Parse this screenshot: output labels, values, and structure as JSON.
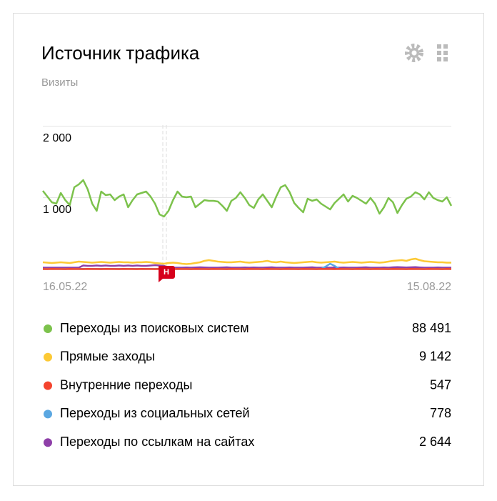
{
  "chart_data": {
    "type": "line",
    "title": "Источник трафика",
    "subtitle": "Визиты",
    "annotation": "Н",
    "categories": [
      "16.05.22",
      null,
      null,
      null,
      null,
      null,
      null,
      null,
      null,
      null,
      null,
      null,
      null,
      null,
      null,
      null,
      null,
      null,
      null,
      null,
      null,
      null,
      null,
      null,
      null,
      null,
      null,
      null,
      null,
      null,
      null,
      null,
      null,
      null,
      null,
      null,
      null,
      null,
      null,
      null,
      null,
      null,
      null,
      null,
      null,
      null,
      null,
      null,
      null,
      null,
      null,
      null,
      null,
      null,
      null,
      null,
      null,
      null,
      null,
      null,
      null,
      null,
      null,
      null,
      null,
      null,
      null,
      null,
      null,
      null,
      null,
      null,
      null,
      null,
      null,
      null,
      null,
      null,
      null,
      null,
      null,
      null,
      null,
      null,
      null,
      null,
      null,
      null,
      null,
      null,
      null,
      "15.08.22"
    ],
    "ylim": [
      0,
      2000
    ],
    "yticks": [
      {
        "value": 1000,
        "label": "1 000"
      },
      {
        "value": 2000,
        "label": "2 000"
      }
    ],
    "grid": true,
    "series": [
      {
        "name": "Переходы из поисковых систем",
        "color": "#7cc24c",
        "total": 88491,
        "total_label": "88 491",
        "values": [
          1100,
          1020,
          940,
          920,
          1070,
          970,
          900,
          1150,
          1190,
          1250,
          1120,
          920,
          820,
          1090,
          1040,
          1050,
          970,
          1020,
          1050,
          870,
          970,
          1050,
          1070,
          1090,
          1020,
          920,
          770,
          740,
          820,
          970,
          1090,
          1020,
          1010,
          1020,
          870,
          920,
          970,
          960,
          960,
          950,
          890,
          820,
          960,
          1000,
          1080,
          1000,
          900,
          860,
          980,
          1050,
          960,
          870,
          1020,
          1150,
          1180,
          1080,
          930,
          860,
          800,
          990,
          960,
          980,
          920,
          880,
          840,
          930,
          990,
          1050,
          950,
          1030,
          1000,
          960,
          920,
          1000,
          920,
          780,
          870,
          1000,
          940,
          790,
          900,
          990,
          1020,
          1080,
          1050,
          980,
          1080,
          1000,
          970,
          950,
          1010,
          890
        ]
      },
      {
        "name": "Прямые заходы",
        "color": "#fcc935",
        "total": 9142,
        "total_label": "9 142",
        "values": [
          100,
          95,
          90,
          95,
          100,
          95,
          90,
          100,
          110,
          105,
          100,
          95,
          100,
          105,
          100,
          95,
          100,
          105,
          100,
          100,
          95,
          100,
          100,
          105,
          100,
          90,
          85,
          80,
          90,
          95,
          90,
          80,
          75,
          80,
          90,
          100,
          120,
          130,
          120,
          110,
          105,
          100,
          100,
          105,
          110,
          100,
          95,
          100,
          105,
          110,
          120,
          105,
          100,
          110,
          100,
          95,
          90,
          95,
          100,
          105,
          110,
          100,
          95,
          100,
          105,
          110,
          100,
          95,
          100,
          105,
          100,
          95,
          100,
          105,
          100,
          95,
          100,
          110,
          120,
          125,
          130,
          120,
          140,
          150,
          130,
          115,
          110,
          105,
          100,
          100,
          95,
          95
        ]
      },
      {
        "name": "Внутренние переходы",
        "color": "#f4442e",
        "total": 547,
        "total_label": "547",
        "values": [
          6,
          5,
          7,
          6,
          6,
          5,
          7,
          6,
          6,
          5,
          7,
          6,
          6,
          5,
          7,
          6,
          6,
          5,
          7,
          6,
          6,
          5,
          7,
          6,
          6,
          5,
          7,
          6,
          6,
          5,
          7,
          6,
          6,
          5,
          7,
          6,
          6,
          5,
          7,
          6,
          6,
          5,
          7,
          6,
          6,
          5,
          7,
          6,
          6,
          5,
          7,
          6,
          6,
          5,
          7,
          6,
          6,
          5,
          7,
          6,
          6,
          5,
          7,
          6,
          6,
          5,
          7,
          6,
          6,
          5,
          7,
          6,
          6,
          5,
          7,
          6,
          6,
          5,
          7,
          6,
          6,
          5,
          7,
          6,
          6,
          5,
          7,
          6,
          6,
          5,
          7,
          6
        ]
      },
      {
        "name": "Переходы из социальных сетей",
        "color": "#5ba7e1",
        "total": 778,
        "total_label": "778",
        "values": [
          8,
          8,
          8,
          8,
          8,
          8,
          8,
          8,
          8,
          8,
          8,
          8,
          8,
          8,
          8,
          8,
          8,
          8,
          8,
          8,
          8,
          8,
          8,
          8,
          8,
          8,
          8,
          8,
          8,
          8,
          8,
          8,
          8,
          8,
          8,
          8,
          8,
          8,
          8,
          8,
          8,
          8,
          8,
          8,
          8,
          8,
          8,
          8,
          8,
          8,
          8,
          8,
          8,
          8,
          8,
          8,
          8,
          8,
          8,
          8,
          8,
          8,
          8,
          40,
          80,
          50,
          8,
          8,
          8,
          8,
          8,
          8,
          8,
          8,
          8,
          8,
          8,
          8,
          8,
          8,
          8,
          8,
          8,
          8,
          8,
          8,
          8,
          8,
          8,
          8,
          8,
          8
        ]
      },
      {
        "name": "Переходы по ссылкам на сайтах",
        "color": "#8e3fa8",
        "total": 2644,
        "total_label": "2 644",
        "values": [
          25,
          25,
          25,
          25,
          25,
          25,
          25,
          25,
          25,
          55,
          50,
          50,
          55,
          50,
          55,
          50,
          50,
          55,
          50,
          55,
          50,
          55,
          50,
          50,
          55,
          60,
          55,
          50,
          28,
          25,
          25,
          25,
          28,
          25,
          28,
          30,
          28,
          25,
          25,
          25,
          28,
          30,
          25,
          25,
          25,
          28,
          25,
          28,
          25,
          25,
          28,
          30,
          25,
          25,
          25,
          28,
          25,
          25,
          25,
          28,
          30,
          25,
          25,
          25,
          25,
          28,
          25,
          28,
          25,
          25,
          25,
          28,
          30,
          25,
          25,
          25,
          28,
          25,
          30,
          32,
          30,
          28,
          30,
          32,
          28,
          25,
          25,
          25,
          28,
          25,
          25,
          25
        ]
      }
    ]
  }
}
